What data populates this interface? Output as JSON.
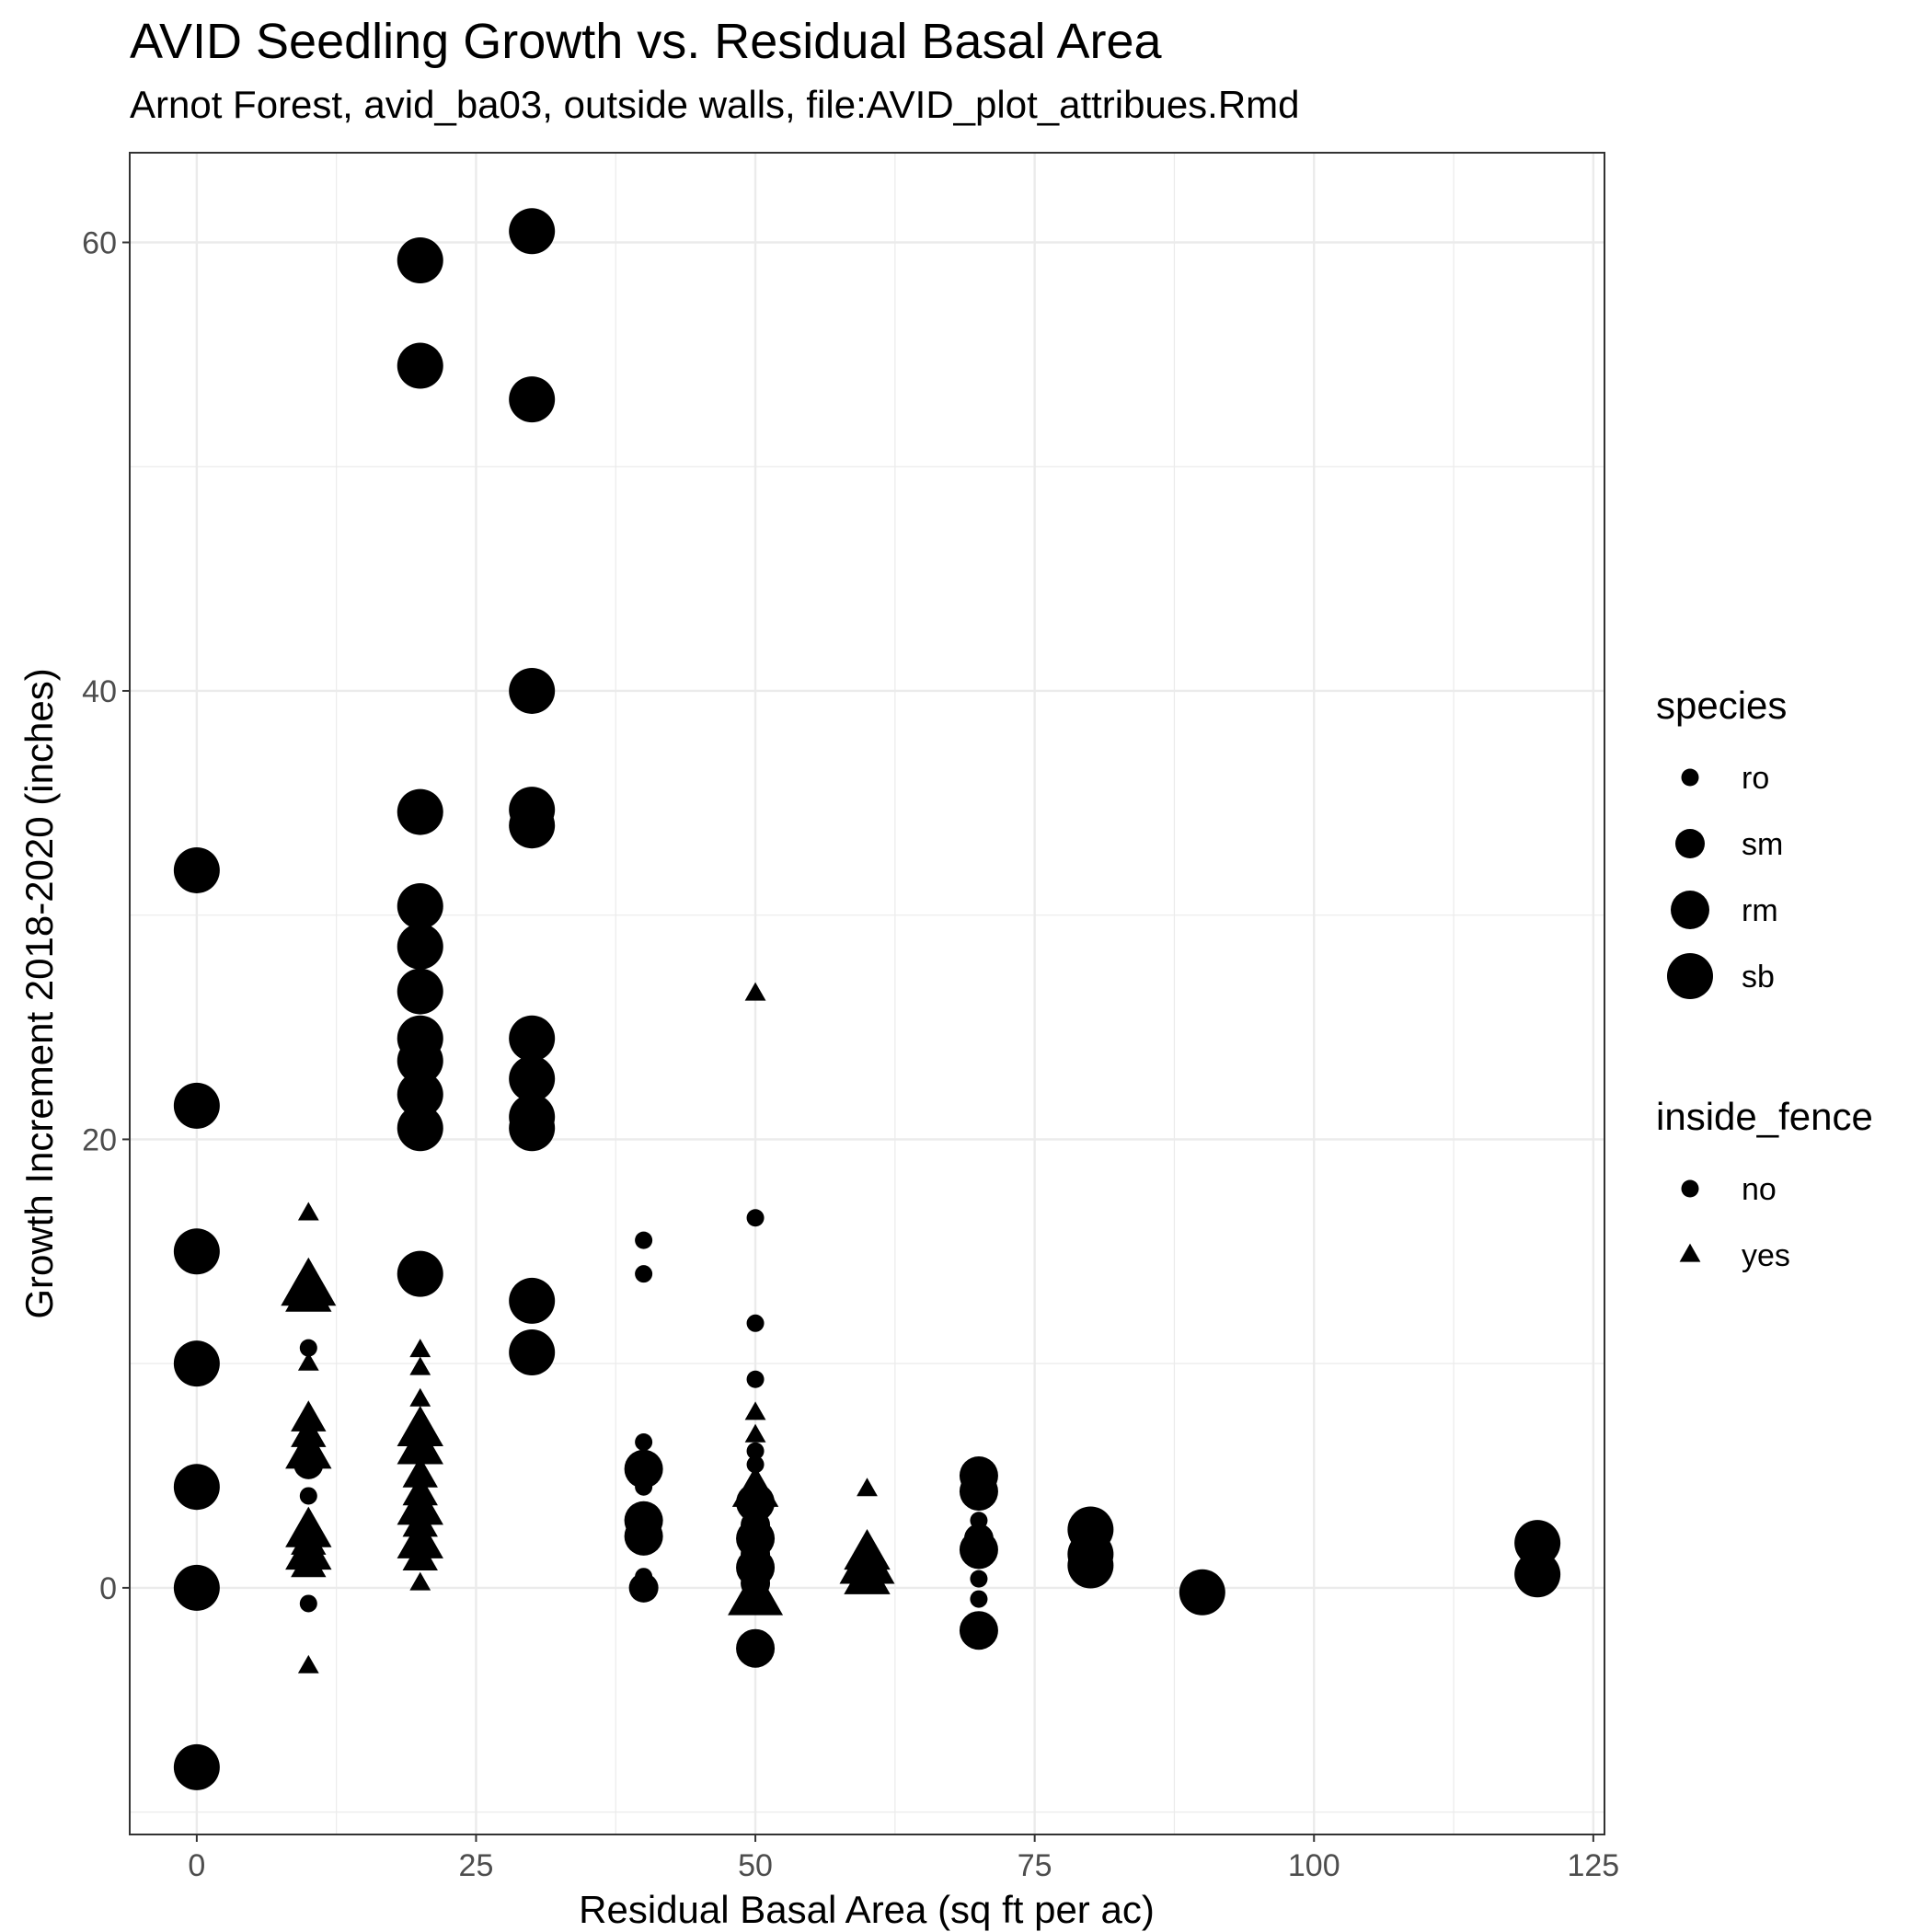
{
  "chart_data": {
    "type": "scatter",
    "title": "AVID Seedling Growth vs. Residual Basal Area",
    "subtitle": "Arnot Forest, avid_ba03, outside walls, file:AVID_plot_attribues.Rmd",
    "xlabel": "Residual Basal Area (sq ft per ac)",
    "ylabel": "Growth Increment 2018-2020 (inches)",
    "xlim": [
      -6,
      126
    ],
    "ylim": [
      -11,
      64
    ],
    "x_ticks": [
      0,
      25,
      50,
      75,
      100,
      125
    ],
    "x_tick_labels": [
      "0",
      "25",
      "50",
      "75",
      "100",
      "125"
    ],
    "y_ticks": [
      0,
      20,
      40,
      60
    ],
    "y_tick_labels": [
      "0",
      "20",
      "40",
      "60"
    ],
    "grid": true,
    "color": "#000000",
    "legend_position": "right",
    "legends": [
      {
        "title": "species",
        "aesthetic": "size",
        "entries": [
          {
            "label": "ro",
            "key": "ro"
          },
          {
            "label": "sm",
            "key": "sm"
          },
          {
            "label": "rm",
            "key": "rm"
          },
          {
            "label": "sb",
            "key": "sb"
          }
        ]
      },
      {
        "title": "inside_fence",
        "aesthetic": "shape",
        "entries": [
          {
            "label": "no",
            "key": "no"
          },
          {
            "label": "yes",
            "key": "yes"
          }
        ]
      }
    ],
    "points": [
      {
        "x": 0,
        "y": 32,
        "species": "sb",
        "inside_fence": "no"
      },
      {
        "x": 0,
        "y": 21.5,
        "species": "sb",
        "inside_fence": "no"
      },
      {
        "x": 0,
        "y": 15,
        "species": "sb",
        "inside_fence": "no"
      },
      {
        "x": 0,
        "y": 10,
        "species": "sb",
        "inside_fence": "no"
      },
      {
        "x": 0,
        "y": 4.5,
        "species": "sb",
        "inside_fence": "no"
      },
      {
        "x": 0,
        "y": 0,
        "species": "sb",
        "inside_fence": "no"
      },
      {
        "x": 0,
        "y": -8,
        "species": "sb",
        "inside_fence": "no"
      },
      {
        "x": 10,
        "y": 16.7,
        "species": "ro",
        "inside_fence": "yes"
      },
      {
        "x": 10,
        "y": 13.4,
        "species": "sb",
        "inside_fence": "yes"
      },
      {
        "x": 10,
        "y": 13.0,
        "species": "rm",
        "inside_fence": "yes"
      },
      {
        "x": 10,
        "y": 10.7,
        "species": "ro",
        "inside_fence": "no"
      },
      {
        "x": 10,
        "y": 10.0,
        "species": "ro",
        "inside_fence": "yes"
      },
      {
        "x": 10,
        "y": 7.5,
        "species": "sm",
        "inside_fence": "yes"
      },
      {
        "x": 10,
        "y": 6.8,
        "species": "sm",
        "inside_fence": "yes"
      },
      {
        "x": 10,
        "y": 6.0,
        "species": "rm",
        "inside_fence": "yes"
      },
      {
        "x": 10,
        "y": 5.5,
        "species": "sm",
        "inside_fence": "no"
      },
      {
        "x": 10,
        "y": 4.1,
        "species": "ro",
        "inside_fence": "no"
      },
      {
        "x": 10,
        "y": 2.5,
        "species": "rm",
        "inside_fence": "yes"
      },
      {
        "x": 10,
        "y": 2.0,
        "species": "sm",
        "inside_fence": "yes"
      },
      {
        "x": 10,
        "y": 1.5,
        "species": "rm",
        "inside_fence": "yes"
      },
      {
        "x": 10,
        "y": 1.0,
        "species": "sm",
        "inside_fence": "yes"
      },
      {
        "x": 10,
        "y": -0.7,
        "species": "ro",
        "inside_fence": "no"
      },
      {
        "x": 10,
        "y": -3.5,
        "species": "ro",
        "inside_fence": "yes"
      },
      {
        "x": 20,
        "y": 59.2,
        "species": "sb",
        "inside_fence": "no"
      },
      {
        "x": 20,
        "y": 54.5,
        "species": "sb",
        "inside_fence": "no"
      },
      {
        "x": 20,
        "y": 34.6,
        "species": "sb",
        "inside_fence": "no"
      },
      {
        "x": 20,
        "y": 30.4,
        "species": "sb",
        "inside_fence": "no"
      },
      {
        "x": 20,
        "y": 28.6,
        "species": "sb",
        "inside_fence": "no"
      },
      {
        "x": 20,
        "y": 26.6,
        "species": "sb",
        "inside_fence": "no"
      },
      {
        "x": 20,
        "y": 24.5,
        "species": "sb",
        "inside_fence": "no"
      },
      {
        "x": 20,
        "y": 23.5,
        "species": "sb",
        "inside_fence": "no"
      },
      {
        "x": 20,
        "y": 22.0,
        "species": "sb",
        "inside_fence": "no"
      },
      {
        "x": 20,
        "y": 20.5,
        "species": "sb",
        "inside_fence": "no"
      },
      {
        "x": 20,
        "y": 14.0,
        "species": "sb",
        "inside_fence": "no"
      },
      {
        "x": 20,
        "y": 10.6,
        "species": "ro",
        "inside_fence": "yes"
      },
      {
        "x": 20,
        "y": 9.8,
        "species": "ro",
        "inside_fence": "yes"
      },
      {
        "x": 20,
        "y": 8.4,
        "species": "ro",
        "inside_fence": "yes"
      },
      {
        "x": 20,
        "y": 7.0,
        "species": "rm",
        "inside_fence": "yes"
      },
      {
        "x": 20,
        "y": 6.2,
        "species": "rm",
        "inside_fence": "yes"
      },
      {
        "x": 20,
        "y": 5.0,
        "species": "sm",
        "inside_fence": "yes"
      },
      {
        "x": 20,
        "y": 4.2,
        "species": "sm",
        "inside_fence": "yes"
      },
      {
        "x": 20,
        "y": 3.5,
        "species": "rm",
        "inside_fence": "yes"
      },
      {
        "x": 20,
        "y": 2.8,
        "species": "sm",
        "inside_fence": "yes"
      },
      {
        "x": 20,
        "y": 2.0,
        "species": "rm",
        "inside_fence": "yes"
      },
      {
        "x": 20,
        "y": 1.3,
        "species": "sm",
        "inside_fence": "yes"
      },
      {
        "x": 20,
        "y": 0.2,
        "species": "ro",
        "inside_fence": "yes"
      },
      {
        "x": 30,
        "y": 60.5,
        "species": "sb",
        "inside_fence": "no"
      },
      {
        "x": 30,
        "y": 53.0,
        "species": "sb",
        "inside_fence": "no"
      },
      {
        "x": 30,
        "y": 40.0,
        "species": "sb",
        "inside_fence": "no"
      },
      {
        "x": 30,
        "y": 34.7,
        "species": "sb",
        "inside_fence": "no"
      },
      {
        "x": 30,
        "y": 34.0,
        "species": "sb",
        "inside_fence": "no"
      },
      {
        "x": 30,
        "y": 24.5,
        "species": "sb",
        "inside_fence": "no"
      },
      {
        "x": 30,
        "y": 22.7,
        "species": "sb",
        "inside_fence": "no"
      },
      {
        "x": 30,
        "y": 21.0,
        "species": "sb",
        "inside_fence": "no"
      },
      {
        "x": 30,
        "y": 20.5,
        "species": "sb",
        "inside_fence": "no"
      },
      {
        "x": 30,
        "y": 12.8,
        "species": "sb",
        "inside_fence": "no"
      },
      {
        "x": 30,
        "y": 10.5,
        "species": "sb",
        "inside_fence": "no"
      },
      {
        "x": 40,
        "y": 15.5,
        "species": "ro",
        "inside_fence": "no"
      },
      {
        "x": 40,
        "y": 14.0,
        "species": "ro",
        "inside_fence": "no"
      },
      {
        "x": 40,
        "y": 6.5,
        "species": "ro",
        "inside_fence": "no"
      },
      {
        "x": 40,
        "y": 5.3,
        "species": "rm",
        "inside_fence": "no"
      },
      {
        "x": 40,
        "y": 4.5,
        "species": "ro",
        "inside_fence": "no"
      },
      {
        "x": 40,
        "y": 3.0,
        "species": "rm",
        "inside_fence": "no"
      },
      {
        "x": 40,
        "y": 2.3,
        "species": "rm",
        "inside_fence": "no"
      },
      {
        "x": 40,
        "y": 0.5,
        "species": "ro",
        "inside_fence": "no"
      },
      {
        "x": 40,
        "y": 0.0,
        "species": "sm",
        "inside_fence": "no"
      },
      {
        "x": 50,
        "y": 26.5,
        "species": "ro",
        "inside_fence": "yes"
      },
      {
        "x": 50,
        "y": 16.5,
        "species": "ro",
        "inside_fence": "no"
      },
      {
        "x": 50,
        "y": 11.8,
        "species": "ro",
        "inside_fence": "no"
      },
      {
        "x": 50,
        "y": 9.3,
        "species": "ro",
        "inside_fence": "no"
      },
      {
        "x": 50,
        "y": 7.8,
        "species": "ro",
        "inside_fence": "yes"
      },
      {
        "x": 50,
        "y": 6.8,
        "species": "ro",
        "inside_fence": "yes"
      },
      {
        "x": 50,
        "y": 6.1,
        "species": "ro",
        "inside_fence": "no"
      },
      {
        "x": 50,
        "y": 5.5,
        "species": "ro",
        "inside_fence": "no"
      },
      {
        "x": 50,
        "y": 4.3,
        "species": "rm",
        "inside_fence": "yes"
      },
      {
        "x": 50,
        "y": 3.8,
        "species": "rm",
        "inside_fence": "no"
      },
      {
        "x": 50,
        "y": 2.8,
        "species": "sm",
        "inside_fence": "no"
      },
      {
        "x": 50,
        "y": 2.2,
        "species": "rm",
        "inside_fence": "no"
      },
      {
        "x": 50,
        "y": 1.5,
        "species": "sm",
        "inside_fence": "no"
      },
      {
        "x": 50,
        "y": 0.9,
        "species": "rm",
        "inside_fence": "no"
      },
      {
        "x": 50,
        "y": 0.2,
        "species": "sm",
        "inside_fence": "no"
      },
      {
        "x": 50,
        "y": -0.4,
        "species": "sb",
        "inside_fence": "yes"
      },
      {
        "x": 50,
        "y": -2.7,
        "species": "rm",
        "inside_fence": "no"
      },
      {
        "x": 60,
        "y": 4.4,
        "species": "ro",
        "inside_fence": "yes"
      },
      {
        "x": 60,
        "y": 1.5,
        "species": "rm",
        "inside_fence": "yes"
      },
      {
        "x": 60,
        "y": 1.0,
        "species": "sb",
        "inside_fence": "yes"
      },
      {
        "x": 60,
        "y": 0.4,
        "species": "rm",
        "inside_fence": "yes"
      },
      {
        "x": 70,
        "y": 5.0,
        "species": "rm",
        "inside_fence": "no"
      },
      {
        "x": 70,
        "y": 4.3,
        "species": "rm",
        "inside_fence": "no"
      },
      {
        "x": 70,
        "y": 3.0,
        "species": "ro",
        "inside_fence": "no"
      },
      {
        "x": 70,
        "y": 2.2,
        "species": "sm",
        "inside_fence": "no"
      },
      {
        "x": 70,
        "y": 1.7,
        "species": "rm",
        "inside_fence": "no"
      },
      {
        "x": 70,
        "y": 0.4,
        "species": "ro",
        "inside_fence": "no"
      },
      {
        "x": 70,
        "y": -0.5,
        "species": "ro",
        "inside_fence": "no"
      },
      {
        "x": 70,
        "y": -1.9,
        "species": "rm",
        "inside_fence": "no"
      },
      {
        "x": 80,
        "y": 2.6,
        "species": "sb",
        "inside_fence": "no"
      },
      {
        "x": 80,
        "y": 1.5,
        "species": "sb",
        "inside_fence": "no"
      },
      {
        "x": 80,
        "y": 1.0,
        "species": "sb",
        "inside_fence": "no"
      },
      {
        "x": 90,
        "y": -0.2,
        "species": "sb",
        "inside_fence": "no"
      },
      {
        "x": 120,
        "y": 2.0,
        "species": "sb",
        "inside_fence": "no"
      },
      {
        "x": 120,
        "y": 0.6,
        "species": "sb",
        "inside_fence": "no"
      }
    ]
  }
}
